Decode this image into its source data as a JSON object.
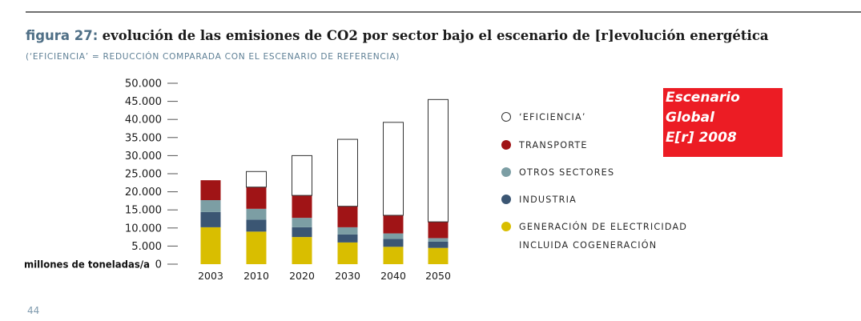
{
  "figure": {
    "number_label": "figura 27:",
    "title": "evolución de las emisiones de CO2 por sector bajo el escenario de [r]evolución energética",
    "subtitle": "(‘EFICIENCIA’ = REDUCCIÓN COMPARADA CON EL ESCENARIO DE REFERENCIA)"
  },
  "badge": {
    "lines": [
      "Escenario",
      "Global",
      "E[r] 2008"
    ],
    "color": "#ec1c24"
  },
  "page_number": "44",
  "chart_data": {
    "type": "bar",
    "stacked": true,
    "categories": [
      "2003",
      "2010",
      "2020",
      "2030",
      "2040",
      "2050"
    ],
    "ylabel": "millones de toneladas/a",
    "ylim": [
      0,
      50000
    ],
    "yticks": [
      "50.000",
      "45.000",
      "40.000",
      "35.000",
      "30.000",
      "25.000",
      "20.000",
      "15.000",
      "10.000",
      "5.000",
      "0"
    ],
    "legend_position": "right",
    "series": [
      {
        "name": "GENERACIÓN DE ELECTRICIDAD INCLUIDA COGENERACIÓN",
        "color": "#d9be00",
        "values": [
          10200,
          9000,
          7500,
          6000,
          4800,
          4500
        ]
      },
      {
        "name": "INDUSTRIA",
        "color": "#3b5673",
        "values": [
          4200,
          3300,
          2700,
          2200,
          2200,
          1700
        ]
      },
      {
        "name": "OTROS SECTORES",
        "color": "#7c9ea4",
        "values": [
          3300,
          3000,
          2600,
          2000,
          1500,
          1000
        ]
      },
      {
        "name": "TRANSPORTE",
        "color": "#a01416",
        "values": [
          5500,
          6000,
          6200,
          5800,
          5000,
          4500
        ]
      },
      {
        "name": "‘EFICIENCIA’",
        "color": "#ffffff",
        "values": [
          0,
          4300,
          11000,
          18500,
          25700,
          33800
        ]
      }
    ],
    "legend_order": [
      {
        "label": "‘EFICIENCIA’",
        "color": "#ffffff"
      },
      {
        "label": "TRANSPORTE",
        "color": "#a01416"
      },
      {
        "label": "OTROS SECTORES",
        "color": "#7c9ea4"
      },
      {
        "label": "INDUSTRIA",
        "color": "#3b5673"
      },
      {
        "label": "GENERACIÓN DE ELECTRICIDAD",
        "label2": "INCLUIDA COGENERACIÓN",
        "color": "#d9be00"
      }
    ]
  }
}
